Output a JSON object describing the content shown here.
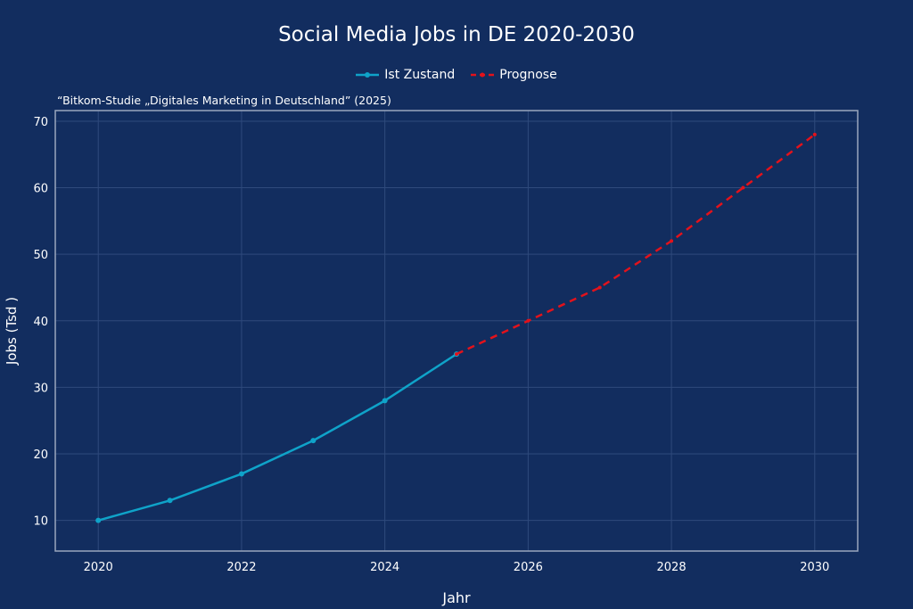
{
  "chart_data": {
    "type": "line",
    "title": "Social Media Jobs in DE 2020-2030",
    "subtitle": "“Bitkom-Studie „Digitales Marketing in Deutschland” (2025)",
    "xlabel": "Jahr",
    "ylabel": "Jobs (Tsd )",
    "xlim": [
      2019.4,
      2030.6
    ],
    "ylim": [
      5.4,
      71.6
    ],
    "xticks": [
      2020,
      2022,
      2024,
      2026,
      2028,
      2030
    ],
    "yticks": [
      10,
      20,
      30,
      40,
      50,
      60,
      70
    ],
    "grid": true,
    "legend": "top-center",
    "series": [
      {
        "name": "Ist Zustand",
        "color": "#0fa3c9",
        "style": "solid",
        "x": [
          2020,
          2021,
          2022,
          2023,
          2024,
          2025
        ],
        "values": [
          10,
          13,
          17,
          22,
          28,
          35
        ]
      },
      {
        "name": "Prognose",
        "color": "#e3121b",
        "style": "dashed",
        "x": [
          2025,
          2026,
          2027,
          2028,
          2029,
          2030
        ],
        "values": [
          35,
          40,
          45,
          52,
          60,
          68
        ]
      }
    ]
  }
}
